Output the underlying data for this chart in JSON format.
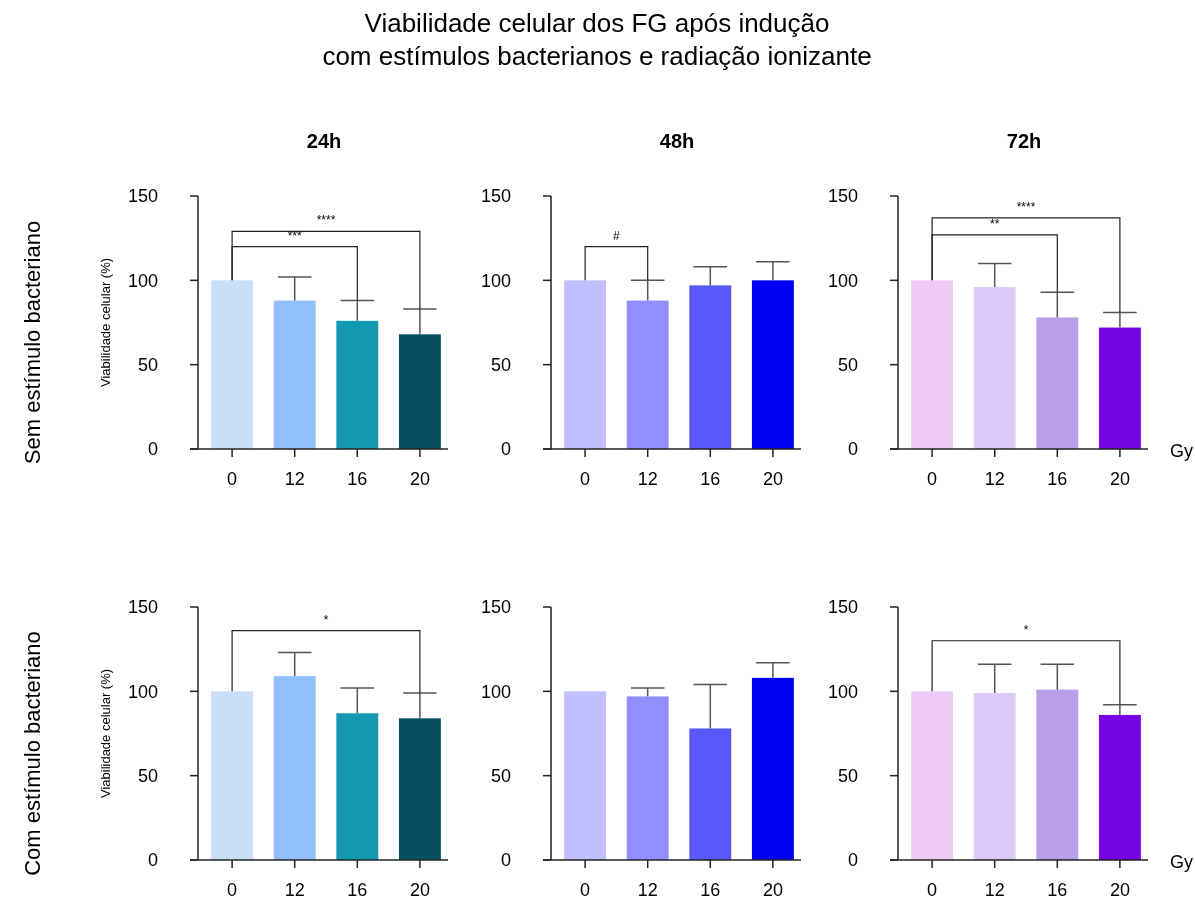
{
  "chart_data": [
    {
      "type": "bar",
      "title": "24h",
      "ylabel": "Viabilidade celular (%)",
      "categories": [
        "0",
        "12",
        "16",
        "20"
      ],
      "values": [
        100,
        88,
        76,
        68
      ],
      "colors": [
        "#c9dff7",
        "#91bff7",
        "#1398b2",
        "#074f61"
      ],
      "errors": [
        null,
        [
          88,
          102
        ],
        [
          76,
          88
        ],
        [
          68,
          83
        ]
      ],
      "ylim": [
        0,
        150
      ],
      "yticks": [
        0,
        50,
        100,
        150
      ],
      "grid": false,
      "annotations": [
        "Viabilidade celular dos FG após indução\ncom estímulos bacterianos e radiação ionizante",
        "Sem estímulo bacteriano",
        "****",
        "***"
      ]
    },
    {
      "type": "bar",
      "title": "48h",
      "categories": [
        "0",
        "12",
        "16",
        "20"
      ],
      "values": [
        100,
        88,
        97,
        100
      ],
      "colors": [
        "#c0c0ff",
        "#8f8fff",
        "#5858fa",
        "#0000f5"
      ],
      "errors": [
        null,
        [
          88,
          100
        ],
        [
          97,
          108
        ],
        [
          100,
          111
        ]
      ],
      "ylim": [
        0,
        150
      ],
      "yticks": [
        0,
        50,
        100,
        150
      ],
      "grid": false,
      "annotations": [
        "#"
      ]
    },
    {
      "type": "bar",
      "title": "72h",
      "xlabel": "Gy",
      "categories": [
        "0",
        "12",
        "16",
        "20"
      ],
      "values": [
        100,
        96,
        78,
        72
      ],
      "colors": [
        "#f0caf6",
        "#dccbf8",
        "#b89fe8",
        "#7605e4"
      ],
      "errors": [
        null,
        [
          96,
          110
        ],
        [
          78,
          93
        ],
        [
          72,
          81
        ]
      ],
      "ylim": [
        0,
        150
      ],
      "yticks": [
        0,
        50,
        100,
        150
      ],
      "grid": false,
      "annotations": [
        "****",
        "**"
      ]
    },
    {
      "type": "bar",
      "ylabel": "Viabilidade celular (%)",
      "categories": [
        "0",
        "12",
        "16",
        "20"
      ],
      "values": [
        100,
        109,
        87,
        84
      ],
      "colors": [
        "#c9dff7",
        "#91bff7",
        "#1398b2",
        "#074f61"
      ],
      "errors": [
        null,
        [
          109,
          123
        ],
        [
          87,
          102
        ],
        [
          84,
          99
        ]
      ],
      "ylim": [
        0,
        150
      ],
      "yticks": [
        0,
        50,
        100,
        150
      ],
      "grid": false,
      "annotations": [
        "Com estímulo bacteriano",
        "*"
      ]
    },
    {
      "type": "bar",
      "categories": [
        "0",
        "12",
        "16",
        "20"
      ],
      "values": [
        100,
        97,
        78,
        108
      ],
      "colors": [
        "#c0c0ff",
        "#8f8fff",
        "#5858fa",
        "#0000f5"
      ],
      "errors": [
        null,
        [
          97,
          102
        ],
        [
          78,
          104
        ],
        [
          108,
          117
        ]
      ],
      "ylim": [
        0,
        150
      ],
      "yticks": [
        0,
        50,
        100,
        150
      ],
      "grid": false
    },
    {
      "type": "bar",
      "xlabel": "Gy",
      "categories": [
        "0",
        "12",
        "16",
        "20"
      ],
      "values": [
        100,
        99,
        101,
        86
      ],
      "colors": [
        "#f0caf6",
        "#dccbf8",
        "#b89fe8",
        "#7605e4"
      ],
      "errors": [
        null,
        [
          99,
          116
        ],
        [
          101,
          116
        ],
        [
          86,
          92
        ]
      ],
      "ylim": [
        0,
        150
      ],
      "yticks": [
        0,
        50,
        100,
        150
      ],
      "grid": false,
      "annotations": [
        "*"
      ]
    }
  ]
}
